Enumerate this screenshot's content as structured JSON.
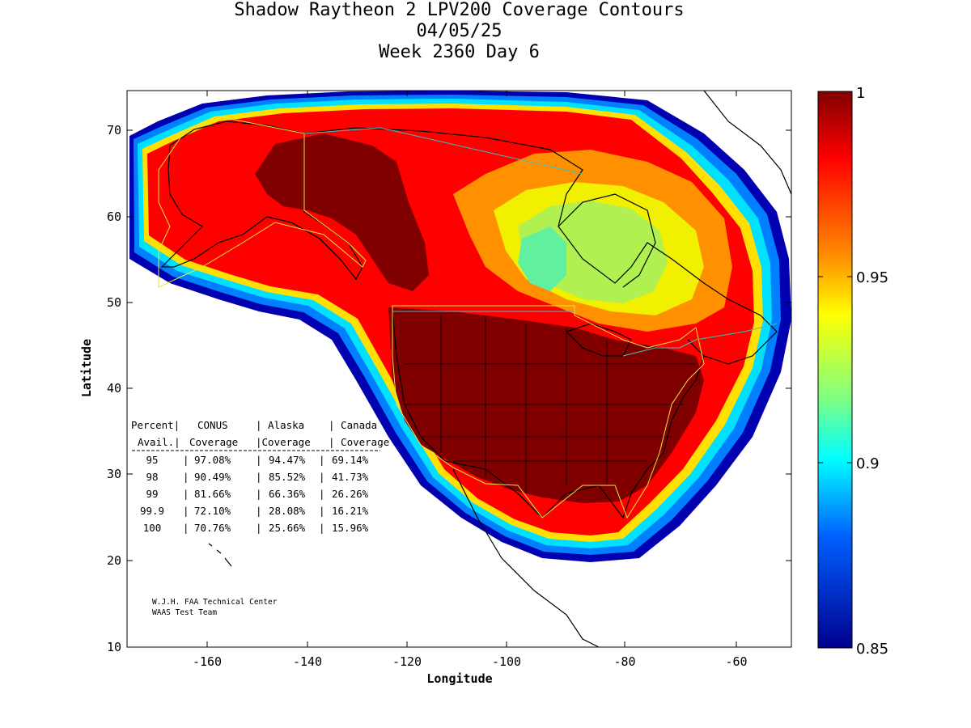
{
  "title": {
    "line1": "Shadow Raytheon 2 LPV200 Coverage Contours",
    "line2": "04/05/25",
    "line3": "Week 2360 Day 6"
  },
  "axes": {
    "xlabel": "Longitude",
    "ylabel": "Latitude",
    "x_ticks": [
      "-160",
      "-140",
      "-120",
      "-100",
      "-80",
      "-60"
    ],
    "y_ticks": [
      "10",
      "20",
      "30",
      "40",
      "50",
      "60",
      "70"
    ]
  },
  "colorbar": {
    "ticks": [
      "1",
      "0.95",
      "0.9",
      "0.85"
    ]
  },
  "table": {
    "header1": [
      "Percent|",
      "CONUS",
      "| Alaska",
      "| Canada"
    ],
    "header2": [
      "Avail.|",
      "Coverage",
      "|Coverage",
      "| Coverage"
    ],
    "rows": [
      [
        "95",
        "97.08%",
        "94.47%",
        "69.14%"
      ],
      [
        "98",
        "90.49%",
        "85.52%",
        "41.73%"
      ],
      [
        "99",
        "81.66%",
        "66.36%",
        "26.26%"
      ],
      [
        "99.9",
        "72.10%",
        "28.08%",
        "16.21%"
      ],
      [
        "100",
        "70.76%",
        "25.66%",
        "15.96%"
      ]
    ]
  },
  "credit": {
    "line1": "W.J.H. FAA Technical Center",
    "line2": "WAAS Test Team"
  },
  "colors": {
    "dark_red": "#800000",
    "red": "#ff0000",
    "orange": "#ff9000",
    "yellow": "#f0f000",
    "green_yellow": "#b0f050",
    "cyan_green": "#60f0a0",
    "cyan": "#00e0ff",
    "blue": "#0040ff",
    "dark_blue": "#00008f",
    "boundary": "#e8e840",
    "border_cyan": "#40c0c0"
  }
}
